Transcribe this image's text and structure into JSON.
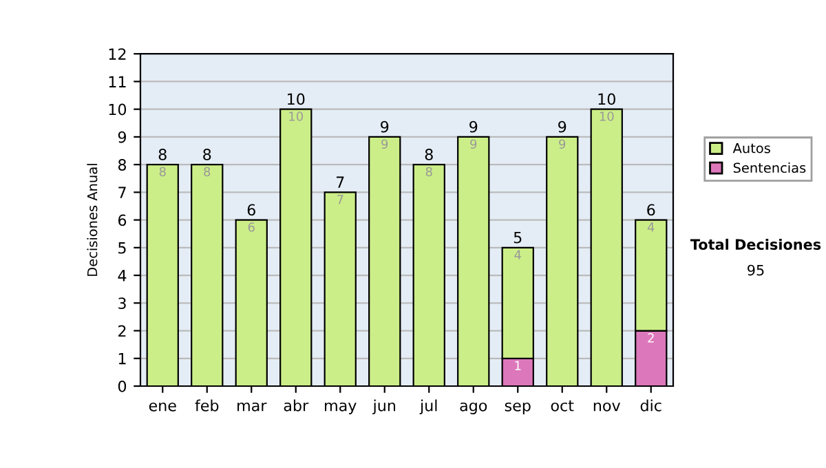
{
  "chart_data": {
    "type": "bar",
    "stacked": true,
    "ylabel": "Decisiones Anual",
    "categories": [
      "ene",
      "feb",
      "mar",
      "abr",
      "may",
      "jun",
      "jul",
      "ago",
      "sep",
      "oct",
      "nov",
      "dic"
    ],
    "series": [
      {
        "name": "Sentencias",
        "color": "#dd77bb",
        "values": [
          0,
          0,
          0,
          0,
          0,
          0,
          0,
          0,
          1,
          0,
          0,
          2
        ],
        "value_labels": [
          null,
          null,
          null,
          null,
          null,
          null,
          null,
          null,
          "1",
          null,
          null,
          "2"
        ]
      },
      {
        "name": "Autos",
        "color": "#ccee88",
        "values": [
          8,
          8,
          6,
          10,
          7,
          9,
          8,
          9,
          4,
          9,
          10,
          4
        ],
        "value_labels": [
          "8",
          "8",
          "6",
          "10",
          "7",
          "9",
          "8",
          "9",
          "4",
          "9",
          "10",
          "4"
        ]
      }
    ],
    "totals": [
      "8",
      "8",
      "6",
      "10",
      "7",
      "9",
      "8",
      "9",
      "5",
      "9",
      "10",
      "6"
    ],
    "ylim": [
      0,
      12
    ],
    "yticks": [
      0,
      1,
      2,
      3,
      4,
      5,
      6,
      7,
      8,
      9,
      10,
      11,
      12
    ],
    "grid": "y",
    "legend": "right",
    "annotations": [
      "Total Decisiones",
      "95"
    ]
  }
}
